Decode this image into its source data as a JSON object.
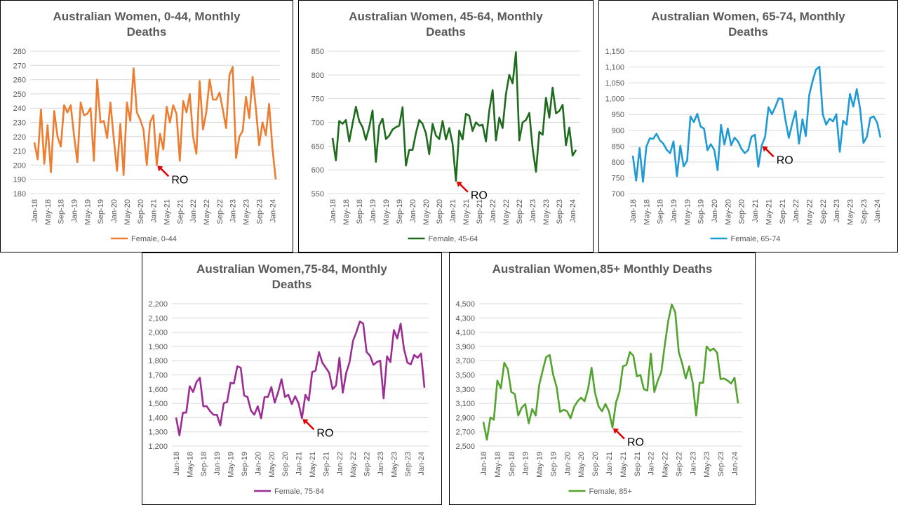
{
  "chart_data": [
    {
      "type": "line",
      "title": [
        "Australian Women, 0-44, Monthly",
        "Deaths"
      ],
      "color": "#ED7D31",
      "ylim": [
        180,
        280
      ],
      "ystep": 10,
      "yticks": [
        "180",
        "190",
        "200",
        "210",
        "220",
        "230",
        "240",
        "250",
        "260",
        "270",
        "280"
      ],
      "xticks": [
        "Jan-18",
        "May-18",
        "Sep-18",
        "Jan-19",
        "May-19",
        "Sep-19",
        "Jan-20",
        "May-20",
        "Sep-20",
        "Jan-21",
        "May-21",
        "Sep-21",
        "Jan-22",
        "May-22",
        "Sep-22",
        "Jan-23",
        "May-23",
        "Sep-23",
        "Jan-24"
      ],
      "series": [
        {
          "name": "Female, 0-44",
          "values": [
            216,
            204,
            239,
            201,
            228,
            195,
            238,
            220,
            213,
            242,
            237,
            242,
            221,
            202,
            244,
            235,
            236,
            240,
            203,
            260,
            230,
            231,
            219,
            244,
            219,
            196,
            229,
            193,
            244,
            231,
            268,
            237,
            232,
            225,
            200,
            230,
            235,
            200,
            222,
            211,
            241,
            230,
            242,
            236,
            203,
            245,
            237,
            250,
            220,
            208,
            259,
            225,
            237,
            260,
            246,
            246,
            251,
            239,
            226,
            263,
            269,
            205,
            220,
            224,
            248,
            233,
            262,
            240,
            214,
            230,
            221,
            243,
            212,
            190
          ]
        }
      ],
      "annotation": {
        "text": "RO",
        "index": 37
      },
      "grid": true,
      "legend": "bottom"
    },
    {
      "type": "line",
      "title": [
        "Australian Women, 45-64, Monthly",
        "Deaths"
      ],
      "color": "#1E6B1E",
      "ylim": [
        550,
        850
      ],
      "ystep": 50,
      "yticks": [
        "550",
        "600",
        "650",
        "700",
        "750",
        "800",
        "850"
      ],
      "xticks": [
        "Jan-18",
        "May-18",
        "Sep-18",
        "Jan-19",
        "May-19",
        "Sep-19",
        "Jan-20",
        "May-20",
        "Sep-20",
        "Jan-21",
        "May-21",
        "Sep-21",
        "Jan-22",
        "May-22",
        "Sep-22",
        "Jan-23",
        "May-23",
        "Sep-23",
        "Jan-24"
      ],
      "series": [
        {
          "name": "Female, 45-64",
          "values": [
            667,
            620,
            703,
            697,
            705,
            660,
            697,
            733,
            703,
            690,
            663,
            690,
            725,
            617,
            693,
            708,
            665,
            672,
            685,
            690,
            693,
            732,
            609,
            642,
            642,
            677,
            705,
            697,
            677,
            633,
            697,
            672,
            665,
            703,
            664,
            688,
            655,
            577,
            683,
            664,
            718,
            714,
            682,
            700,
            693,
            695,
            660,
            725,
            768,
            662,
            710,
            688,
            760,
            800,
            782,
            848,
            662,
            700,
            705,
            720,
            645,
            596,
            680,
            674,
            752,
            710,
            773,
            719,
            724,
            737,
            652,
            689,
            630,
            642
          ]
        }
      ],
      "annotation": {
        "text": "RO",
        "index": 37
      },
      "grid": true,
      "legend": "bottom"
    },
    {
      "type": "line",
      "title": [
        "Australian Women, 65-74, Monthly",
        "Deaths"
      ],
      "color": "#1F9AD6",
      "ylim": [
        700,
        1150
      ],
      "ystep": 50,
      "yticks": [
        "700",
        "750",
        "800",
        "850",
        "900",
        "950",
        "1,000",
        "1,050",
        "1,100",
        "1,150"
      ],
      "xticks": [
        "Jan-18",
        "May-18",
        "Sep-18",
        "Jan-19",
        "May-19",
        "Sep-19",
        "Jan-20",
        "May-20",
        "Sep-20",
        "Jan-21",
        "May-21",
        "Sep-21",
        "Jan-22",
        "May-22",
        "Sep-22",
        "Jan-23",
        "May-23",
        "Sep-23",
        "Jan-24"
      ],
      "series": [
        {
          "name": "Female, 65-74",
          "values": [
            820,
            741,
            844,
            737,
            848,
            875,
            873,
            889,
            868,
            858,
            838,
            828,
            865,
            755,
            851,
            786,
            804,
            944,
            926,
            952,
            912,
            905,
            837,
            856,
            838,
            774,
            917,
            855,
            906,
            853,
            877,
            865,
            842,
            828,
            837,
            880,
            886,
            785,
            852,
            880,
            973,
            951,
            974,
            1001,
            999,
            932,
            876,
            922,
            961,
            858,
            935,
            882,
            1012,
            1056,
            1092,
            1101,
            950,
            918,
            937,
            928,
            951,
            832,
            930,
            918,
            1015,
            975,
            1030,
            968,
            860,
            880,
            939,
            944,
            925,
            877
          ]
        }
      ],
      "annotation": {
        "text": "RO",
        "index": 38
      },
      "grid": true,
      "legend": "bottom"
    },
    {
      "type": "line",
      "title": [
        "Australian Women,75-84, Monthly",
        "Deaths"
      ],
      "color": "#9B2D94",
      "ylim": [
        1200,
        2200
      ],
      "ystep": 100,
      "yticks": [
        "1,200",
        "1,300",
        "1,400",
        "1,500",
        "1,600",
        "1,700",
        "1,800",
        "1,900",
        "2,000",
        "2,100",
        "2,200"
      ],
      "xticks": [
        "Jan-18",
        "May-18",
        "Sep-18",
        "Jan-19",
        "May-19",
        "Sep-19",
        "Jan-20",
        "May-20",
        "Sep-20",
        "Jan-21",
        "May-21",
        "Sep-21",
        "Jan-22",
        "May-22",
        "Sep-22",
        "Jan-23",
        "May-23",
        "Sep-23",
        "Jan-24"
      ],
      "series": [
        {
          "name": "Female, 75-84",
          "values": [
            1400,
            1275,
            1435,
            1435,
            1620,
            1580,
            1650,
            1680,
            1480,
            1480,
            1445,
            1420,
            1420,
            1345,
            1500,
            1510,
            1645,
            1640,
            1760,
            1750,
            1555,
            1545,
            1450,
            1420,
            1480,
            1395,
            1545,
            1545,
            1615,
            1505,
            1580,
            1670,
            1545,
            1560,
            1495,
            1550,
            1500,
            1395,
            1560,
            1520,
            1720,
            1730,
            1860,
            1785,
            1750,
            1715,
            1600,
            1625,
            1820,
            1575,
            1715,
            1790,
            1940,
            2000,
            2075,
            2060,
            1860,
            1835,
            1770,
            1790,
            1800,
            1535,
            1830,
            1790,
            2015,
            1955,
            2060,
            1880,
            1785,
            1775,
            1840,
            1820,
            1850,
            1610
          ]
        }
      ],
      "annotation": {
        "text": "RO",
        "index": 37
      },
      "grid": true,
      "legend": "bottom"
    },
    {
      "type": "line",
      "title": [
        "Australian Women,85+ Monthly Deaths"
      ],
      "color": "#53A32F",
      "ylim": [
        2500,
        4500
      ],
      "ystep": 200,
      "yticks": [
        "2,500",
        "2,700",
        "2,900",
        "3,100",
        "3,300",
        "3,500",
        "3,700",
        "3,900",
        "4,100",
        "4,300",
        "4,500"
      ],
      "xticks": [
        "Jan-18",
        "May-18",
        "Sep-18",
        "Jan-19",
        "May-19",
        "Sep-19",
        "Jan-20",
        "May-20",
        "Sep-20",
        "Jan-21",
        "May-21",
        "Sep-21",
        "Jan-22",
        "May-22",
        "Sep-22",
        "Jan-23",
        "May-23",
        "Sep-23",
        "Jan-24"
      ],
      "series": [
        {
          "name": "Female, 85+",
          "values": [
            2840,
            2590,
            2900,
            2870,
            3420,
            3310,
            3670,
            3580,
            3260,
            3230,
            2930,
            3040,
            3090,
            2820,
            3020,
            2930,
            3360,
            3560,
            3750,
            3780,
            3500,
            3330,
            2980,
            3010,
            2990,
            2890,
            3050,
            3130,
            3180,
            3130,
            3300,
            3600,
            3250,
            3060,
            2990,
            3090,
            2990,
            2760,
            3110,
            3260,
            3620,
            3640,
            3820,
            3770,
            3480,
            3500,
            3300,
            3280,
            3800,
            3260,
            3420,
            3540,
            3920,
            4260,
            4490,
            4380,
            3820,
            3660,
            3450,
            3620,
            3390,
            2930,
            3390,
            3390,
            3900,
            3840,
            3870,
            3810,
            3440,
            3450,
            3420,
            3380,
            3460,
            3100
          ]
        }
      ],
      "annotation": {
        "text": "RO",
        "index": 37
      },
      "grid": true,
      "legend": "bottom"
    }
  ]
}
